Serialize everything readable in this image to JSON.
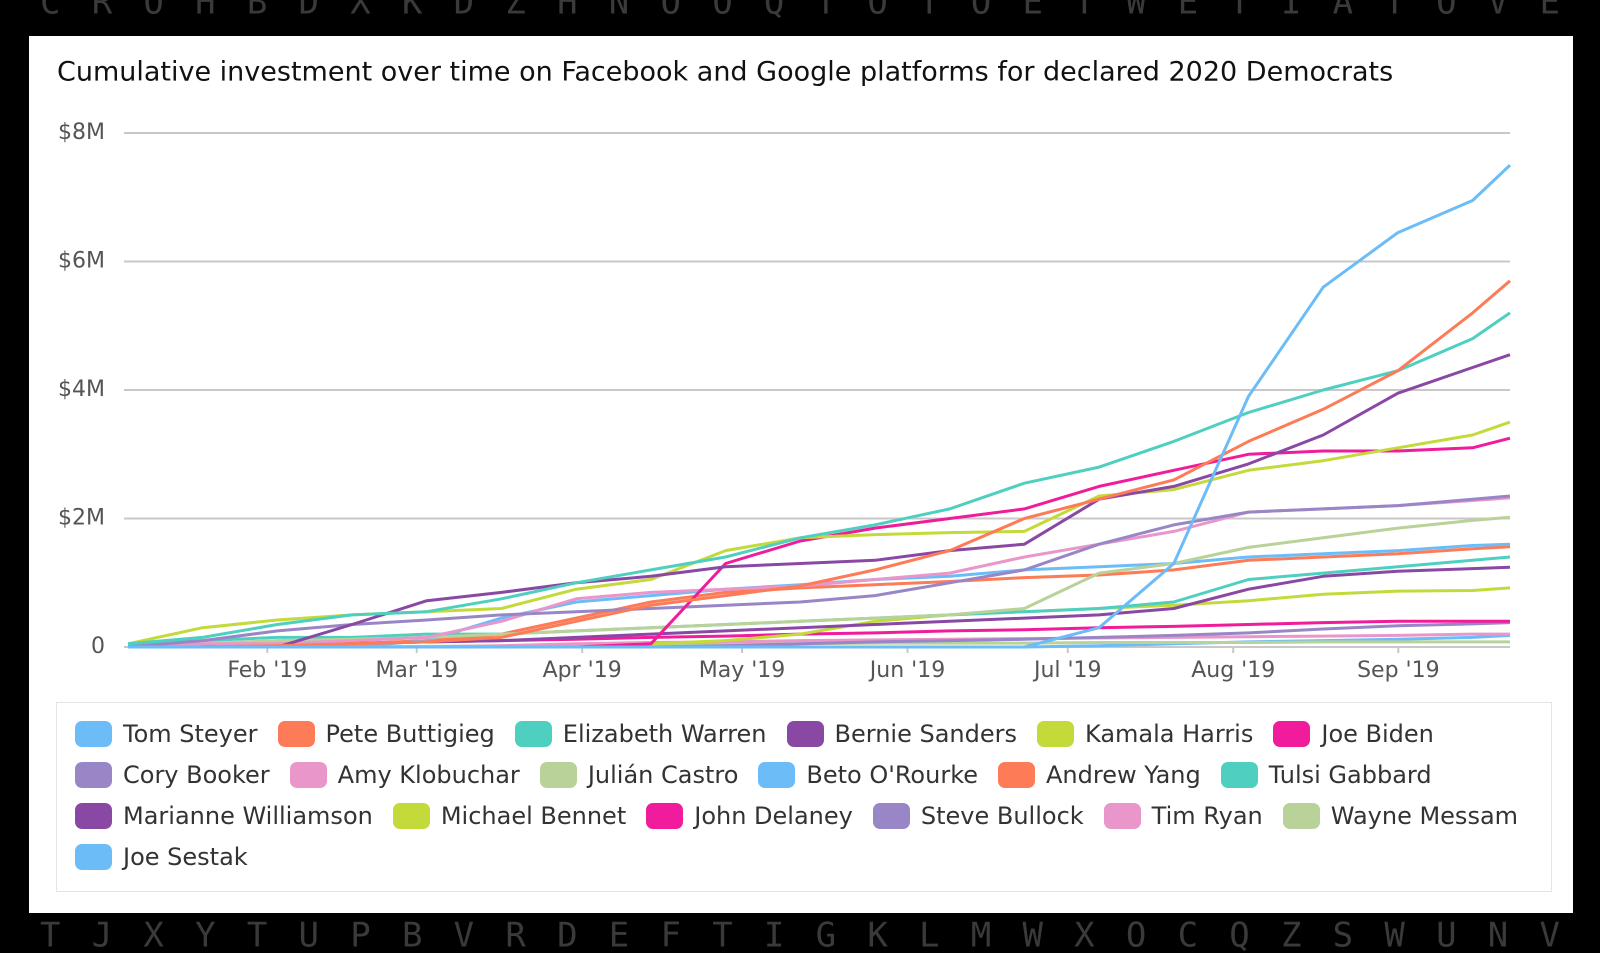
{
  "background_letters": {
    "top": "C R O H B D X K D Z H N O O Q T O T O E T W E T I A T O V E",
    "bottom": "T J X Y T U P B V R D E F T I G K L M W X O C Q Z S W U N V"
  },
  "chart_data": {
    "type": "line",
    "title": "Cumulative investment over time on Facebook and Google platforms for declared 2020 Democrats",
    "x": [
      0.7,
      2.7,
      4.7,
      6.7,
      8.7,
      10.7,
      12.7,
      14.7,
      16.7,
      18.7,
      20.7,
      22.7,
      24.7,
      26.7,
      28.7,
      30.7,
      32.7,
      34.7,
      36.7,
      37.7
    ],
    "xlim": [
      0.7,
      37.7
    ],
    "xticks": [
      {
        "value": 4.43,
        "label": "Feb '19"
      },
      {
        "value": 8.43,
        "label": "Mar '19"
      },
      {
        "value": 12.86,
        "label": "Apr '19"
      },
      {
        "value": 17.14,
        "label": "May '19"
      },
      {
        "value": 21.57,
        "label": "Jun '19"
      },
      {
        "value": 25.86,
        "label": "Jul '19"
      },
      {
        "value": 30.29,
        "label": "Aug '19"
      },
      {
        "value": 34.71,
        "label": "Sep '19"
      }
    ],
    "ylim": [
      0,
      8
    ],
    "yticks": [
      0,
      {
        "value": 2,
        "label": "$2M"
      },
      {
        "value": 4,
        "label": "$4M"
      },
      {
        "value": 6,
        "label": "$6M"
      },
      {
        "value": 8,
        "label": "$8M"
      }
    ],
    "grid": true,
    "legend": "bottom",
    "series": [
      {
        "name": "Tom Steyer",
        "color": "#6cbcf8",
        "values": [
          0,
          0,
          0,
          0,
          0,
          0,
          0,
          0,
          0,
          0,
          0,
          0,
          0,
          0.3,
          1.3,
          3.9,
          5.6,
          6.45,
          6.95,
          7.5
        ]
      },
      {
        "name": "Pete Buttigieg",
        "color": "#fd7b56",
        "values": [
          0,
          0,
          0.02,
          0.05,
          0.08,
          0.15,
          0.4,
          0.65,
          0.8,
          0.95,
          1.2,
          1.5,
          2.0,
          2.3,
          2.6,
          3.2,
          3.7,
          4.3,
          5.2,
          5.7
        ]
      },
      {
        "name": "Elizabeth Warren",
        "color": "#4fcfc0",
        "values": [
          0.05,
          0.15,
          0.35,
          0.5,
          0.55,
          0.75,
          1.0,
          1.2,
          1.4,
          1.7,
          1.9,
          2.15,
          2.55,
          2.8,
          3.2,
          3.65,
          4.0,
          4.3,
          4.8,
          5.2
        ]
      },
      {
        "name": "Bernie Sanders",
        "color": "#8a48a5",
        "values": [
          0,
          0,
          0,
          0.35,
          0.72,
          0.85,
          1.0,
          1.1,
          1.25,
          1.3,
          1.35,
          1.5,
          1.6,
          2.3,
          2.5,
          2.85,
          3.3,
          3.95,
          4.35,
          4.55
        ]
      },
      {
        "name": "Kamala Harris",
        "color": "#c4d93a",
        "values": [
          0.05,
          0.3,
          0.42,
          0.5,
          0.55,
          0.6,
          0.9,
          1.05,
          1.5,
          1.7,
          1.75,
          1.78,
          1.8,
          2.35,
          2.45,
          2.75,
          2.9,
          3.1,
          3.3,
          3.5
        ]
      },
      {
        "name": "Joe Biden",
        "color": "#f01c9c",
        "values": [
          0,
          0,
          0,
          0,
          0,
          0,
          0,
          0.05,
          1.3,
          1.65,
          1.85,
          2.0,
          2.15,
          2.5,
          2.75,
          3.0,
          3.05,
          3.05,
          3.1,
          3.25
        ]
      },
      {
        "name": "Cory Booker",
        "color": "#9986c7",
        "values": [
          0,
          0.1,
          0.25,
          0.35,
          0.42,
          0.5,
          0.55,
          0.6,
          0.65,
          0.7,
          0.8,
          1.0,
          1.2,
          1.6,
          1.9,
          2.1,
          2.15,
          2.2,
          2.3,
          2.35
        ]
      },
      {
        "name": "Amy Klobuchar",
        "color": "#e996ca",
        "values": [
          0,
          0.05,
          0.05,
          0.1,
          0.15,
          0.4,
          0.75,
          0.85,
          0.9,
          0.95,
          1.05,
          1.15,
          1.4,
          1.6,
          1.8,
          2.1,
          2.15,
          2.2,
          2.28,
          2.32
        ]
      },
      {
        "name": "Julián Castro",
        "color": "#b8d29a",
        "values": [
          0,
          0.05,
          0.1,
          0.12,
          0.15,
          0.2,
          0.25,
          0.3,
          0.35,
          0.4,
          0.45,
          0.5,
          0.6,
          1.15,
          1.3,
          1.55,
          1.7,
          1.85,
          1.97,
          2.02
        ]
      },
      {
        "name": "Beto O'Rourke",
        "color": "#6cbcf8",
        "values": [
          0,
          0,
          0,
          0,
          0.1,
          0.45,
          0.7,
          0.8,
          0.9,
          0.97,
          1.05,
          1.1,
          1.2,
          1.25,
          1.3,
          1.4,
          1.45,
          1.5,
          1.58,
          1.6
        ]
      },
      {
        "name": "Andrew Yang",
        "color": "#fd7b56",
        "values": [
          0,
          0,
          0.02,
          0.05,
          0.1,
          0.2,
          0.45,
          0.7,
          0.85,
          0.92,
          0.97,
          1.02,
          1.08,
          1.12,
          1.2,
          1.35,
          1.4,
          1.45,
          1.53,
          1.56
        ]
      },
      {
        "name": "Tulsi Gabbard",
        "color": "#4fcfc0",
        "values": [
          0.05,
          0.1,
          0.15,
          0.15,
          0.2,
          0.2,
          0.25,
          0.3,
          0.35,
          0.4,
          0.45,
          0.5,
          0.55,
          0.6,
          0.7,
          1.05,
          1.15,
          1.25,
          1.35,
          1.4
        ]
      },
      {
        "name": "Marianne Williamson",
        "color": "#8a48a5",
        "values": [
          0,
          0,
          0.02,
          0.05,
          0.08,
          0.1,
          0.15,
          0.2,
          0.25,
          0.3,
          0.35,
          0.4,
          0.45,
          0.5,
          0.6,
          0.9,
          1.1,
          1.18,
          1.22,
          1.24
        ]
      },
      {
        "name": "Michael Bennet",
        "color": "#c4d93a",
        "values": [
          0,
          0,
          0,
          0,
          0,
          0,
          0,
          0.05,
          0.1,
          0.2,
          0.4,
          0.5,
          0.55,
          0.6,
          0.65,
          0.72,
          0.82,
          0.87,
          0.88,
          0.92
        ]
      },
      {
        "name": "John Delaney",
        "color": "#f01c9c",
        "values": [
          0.02,
          0.03,
          0.05,
          0.06,
          0.08,
          0.1,
          0.12,
          0.15,
          0.17,
          0.2,
          0.22,
          0.25,
          0.27,
          0.3,
          0.32,
          0.35,
          0.38,
          0.4,
          0.4,
          0.4
        ]
      },
      {
        "name": "Steve Bullock",
        "color": "#9986c7",
        "values": [
          0,
          0,
          0,
          0,
          0,
          0,
          0,
          0,
          0.02,
          0.05,
          0.08,
          0.1,
          0.12,
          0.15,
          0.18,
          0.22,
          0.28,
          0.33,
          0.36,
          0.38
        ]
      },
      {
        "name": "Tim Ryan",
        "color": "#e996ca",
        "values": [
          0,
          0,
          0,
          0,
          0,
          0.02,
          0.05,
          0.07,
          0.08,
          0.1,
          0.11,
          0.12,
          0.13,
          0.14,
          0.15,
          0.16,
          0.17,
          0.18,
          0.2,
          0.2
        ]
      },
      {
        "name": "Wayne Messam",
        "color": "#b8d29a",
        "values": [
          0,
          0,
          0,
          0,
          0.01,
          0.02,
          0.03,
          0.04,
          0.05,
          0.05,
          0.06,
          0.06,
          0.06,
          0.07,
          0.07,
          0.07,
          0.08,
          0.08,
          0.08,
          0.08
        ]
      },
      {
        "name": "Joe Sestak",
        "color": "#6cbcf8",
        "values": [
          0,
          0,
          0,
          0,
          0,
          0,
          0,
          0,
          0,
          0,
          0,
          0,
          0,
          0.02,
          0.05,
          0.08,
          0.1,
          0.12,
          0.15,
          0.18
        ]
      }
    ]
  }
}
